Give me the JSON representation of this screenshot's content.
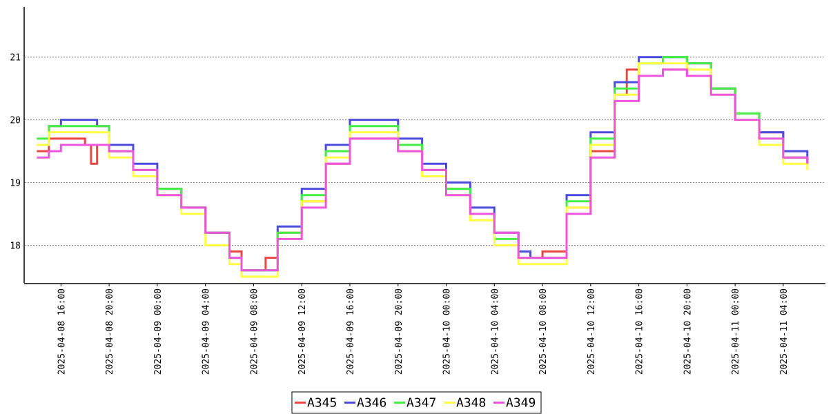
{
  "chart_data": {
    "type": "line",
    "title": "",
    "xlabel": "",
    "ylabel": "",
    "grid": {
      "y": true,
      "x": false,
      "style": "dotted"
    },
    "legend_position": "bottom-center",
    "ylim": [
      17.4,
      21.8
    ],
    "xlim": [
      "2025-04-08 13:00",
      "2025-04-11 07:30"
    ],
    "y_ticks": [
      18,
      19,
      20,
      21
    ],
    "x_ticks": [
      "2025-04-08 16:00",
      "2025-04-08 20:00",
      "2025-04-09 00:00",
      "2025-04-09 04:00",
      "2025-04-09 08:00",
      "2025-04-09 12:00",
      "2025-04-09 16:00",
      "2025-04-09 20:00",
      "2025-04-10 00:00",
      "2025-04-10 04:00",
      "2025-04-10 08:00",
      "2025-04-10 12:00",
      "2025-04-10 16:00",
      "2025-04-10 20:00",
      "2025-04-11 00:00",
      "2025-04-11 04:00"
    ],
    "series": [
      {
        "name": "A345",
        "color": "#ee4444",
        "x": [
          "2025-04-08 14:00",
          "2025-04-08 15:00",
          "2025-04-08 16:00",
          "2025-04-08 17:00",
          "2025-04-08 18:00",
          "2025-04-08 18:30",
          "2025-04-08 19:00",
          "2025-04-08 20:00",
          "2025-04-08 22:00",
          "2025-04-09 00:00",
          "2025-04-09 02:00",
          "2025-04-09 04:00",
          "2025-04-09 06:00",
          "2025-04-09 07:00",
          "2025-04-09 08:00",
          "2025-04-09 09:00",
          "2025-04-09 10:00",
          "2025-04-09 12:00",
          "2025-04-09 14:00",
          "2025-04-09 16:00",
          "2025-04-09 18:00",
          "2025-04-09 20:00",
          "2025-04-09 22:00",
          "2025-04-10 00:00",
          "2025-04-10 02:00",
          "2025-04-10 04:00",
          "2025-04-10 06:00",
          "2025-04-10 08:00",
          "2025-04-10 10:00",
          "2025-04-10 12:00",
          "2025-04-10 14:00",
          "2025-04-10 15:00",
          "2025-04-10 16:00",
          "2025-04-10 18:00",
          "2025-04-10 20:00",
          "2025-04-10 22:00",
          "2025-04-11 00:00",
          "2025-04-11 02:00",
          "2025-04-11 04:00",
          "2025-04-11 06:00"
        ],
        "y": [
          19.5,
          19.7,
          19.7,
          19.7,
          19.6,
          19.3,
          19.6,
          19.5,
          19.2,
          18.9,
          18.6,
          18.2,
          17.9,
          17.6,
          17.6,
          17.8,
          18.2,
          18.7,
          19.3,
          19.7,
          19.7,
          19.5,
          19.2,
          18.9,
          18.5,
          18.2,
          17.8,
          17.9,
          18.6,
          19.5,
          20.4,
          20.8,
          20.7,
          20.8,
          20.7,
          20.5,
          20.1,
          19.8,
          19.4,
          19.3
        ]
      },
      {
        "name": "A346",
        "color": "#4b4bdd",
        "x": [
          "2025-04-08 14:00",
          "2025-04-08 15:00",
          "2025-04-08 16:00",
          "2025-04-08 18:00",
          "2025-04-08 19:00",
          "2025-04-08 20:00",
          "2025-04-08 22:00",
          "2025-04-09 00:00",
          "2025-04-09 02:00",
          "2025-04-09 04:00",
          "2025-04-09 06:00",
          "2025-04-09 07:00",
          "2025-04-09 08:00",
          "2025-04-09 10:00",
          "2025-04-09 12:00",
          "2025-04-09 14:00",
          "2025-04-09 16:00",
          "2025-04-09 18:00",
          "2025-04-09 20:00",
          "2025-04-09 22:00",
          "2025-04-10 00:00",
          "2025-04-10 02:00",
          "2025-04-10 04:00",
          "2025-04-10 06:00",
          "2025-04-10 07:00",
          "2025-04-10 08:00",
          "2025-04-10 10:00",
          "2025-04-10 12:00",
          "2025-04-10 14:00",
          "2025-04-10 16:00",
          "2025-04-10 18:00",
          "2025-04-10 20:00",
          "2025-04-10 22:00",
          "2025-04-11 00:00",
          "2025-04-11 02:00",
          "2025-04-11 04:00",
          "2025-04-11 06:00"
        ],
        "y": [
          19.6,
          19.9,
          20.0,
          20.0,
          19.9,
          19.6,
          19.3,
          18.9,
          18.6,
          18.2,
          17.8,
          17.6,
          17.6,
          18.3,
          18.9,
          19.6,
          20.0,
          20.0,
          19.7,
          19.3,
          19.0,
          18.6,
          18.2,
          17.9,
          17.8,
          17.8,
          18.8,
          19.8,
          20.6,
          21.0,
          21.0,
          20.9,
          20.5,
          20.1,
          19.8,
          19.5,
          19.3
        ]
      },
      {
        "name": "A347",
        "color": "#44ee44",
        "x": [
          "2025-04-08 14:00",
          "2025-04-08 15:00",
          "2025-04-08 16:00",
          "2025-04-08 18:00",
          "2025-04-08 20:00",
          "2025-04-08 22:00",
          "2025-04-09 00:00",
          "2025-04-09 02:00",
          "2025-04-09 04:00",
          "2025-04-09 06:00",
          "2025-04-09 07:00",
          "2025-04-09 08:00",
          "2025-04-09 10:00",
          "2025-04-09 12:00",
          "2025-04-09 14:00",
          "2025-04-09 16:00",
          "2025-04-09 18:00",
          "2025-04-09 20:00",
          "2025-04-09 22:00",
          "2025-04-10 00:00",
          "2025-04-10 02:00",
          "2025-04-10 04:00",
          "2025-04-10 06:00",
          "2025-04-10 08:00",
          "2025-04-10 10:00",
          "2025-04-10 12:00",
          "2025-04-10 14:00",
          "2025-04-10 16:00",
          "2025-04-10 18:00",
          "2025-04-10 20:00",
          "2025-04-10 22:00",
          "2025-04-11 00:00",
          "2025-04-11 02:00",
          "2025-04-11 04:00",
          "2025-04-11 06:00"
        ],
        "y": [
          19.7,
          19.9,
          19.9,
          19.9,
          19.5,
          19.2,
          18.9,
          18.6,
          18.2,
          17.8,
          17.6,
          17.6,
          18.2,
          18.8,
          19.5,
          19.9,
          19.9,
          19.6,
          19.2,
          18.9,
          18.5,
          18.1,
          17.8,
          17.8,
          18.7,
          19.7,
          20.5,
          20.9,
          21.0,
          20.9,
          20.5,
          20.1,
          19.7,
          19.4,
          19.4
        ]
      },
      {
        "name": "A348",
        "color": "#ffff44",
        "x": [
          "2025-04-08 14:00",
          "2025-04-08 15:00",
          "2025-04-08 16:00",
          "2025-04-08 18:00",
          "2025-04-08 20:00",
          "2025-04-08 22:00",
          "2025-04-09 00:00",
          "2025-04-09 02:00",
          "2025-04-09 04:00",
          "2025-04-09 06:00",
          "2025-04-09 07:00",
          "2025-04-09 08:00",
          "2025-04-09 10:00",
          "2025-04-09 12:00",
          "2025-04-09 14:00",
          "2025-04-09 16:00",
          "2025-04-09 18:00",
          "2025-04-09 20:00",
          "2025-04-09 22:00",
          "2025-04-10 00:00",
          "2025-04-10 02:00",
          "2025-04-10 04:00",
          "2025-04-10 06:00",
          "2025-04-10 08:00",
          "2025-04-10 10:00",
          "2025-04-10 12:00",
          "2025-04-10 14:00",
          "2025-04-10 16:00",
          "2025-04-10 18:00",
          "2025-04-10 20:00",
          "2025-04-10 22:00",
          "2025-04-11 00:00",
          "2025-04-11 02:00",
          "2025-04-11 04:00",
          "2025-04-11 06:00"
        ],
        "y": [
          19.6,
          19.8,
          19.8,
          19.8,
          19.4,
          19.1,
          18.8,
          18.5,
          18.0,
          17.7,
          17.5,
          17.5,
          18.1,
          18.7,
          19.4,
          19.8,
          19.8,
          19.5,
          19.1,
          18.8,
          18.4,
          18.0,
          17.7,
          17.7,
          18.6,
          19.6,
          20.4,
          20.9,
          20.9,
          20.8,
          20.4,
          20.0,
          19.6,
          19.3,
          19.2
        ]
      },
      {
        "name": "A349",
        "color": "#ee55dd",
        "x": [
          "2025-04-08 14:00",
          "2025-04-08 15:00",
          "2025-04-08 16:00",
          "2025-04-08 18:00",
          "2025-04-08 20:00",
          "2025-04-08 22:00",
          "2025-04-09 00:00",
          "2025-04-09 02:00",
          "2025-04-09 04:00",
          "2025-04-09 06:00",
          "2025-04-09 07:00",
          "2025-04-09 08:00",
          "2025-04-09 10:00",
          "2025-04-09 12:00",
          "2025-04-09 14:00",
          "2025-04-09 16:00",
          "2025-04-09 18:00",
          "2025-04-09 20:00",
          "2025-04-09 22:00",
          "2025-04-10 00:00",
          "2025-04-10 02:00",
          "2025-04-10 04:00",
          "2025-04-10 06:00",
          "2025-04-10 08:00",
          "2025-04-10 10:00",
          "2025-04-10 12:00",
          "2025-04-10 14:00",
          "2025-04-10 16:00",
          "2025-04-10 18:00",
          "2025-04-10 20:00",
          "2025-04-10 22:00",
          "2025-04-11 00:00",
          "2025-04-11 02:00",
          "2025-04-11 04:00",
          "2025-04-11 06:00"
        ],
        "y": [
          19.4,
          19.5,
          19.6,
          19.6,
          19.5,
          19.2,
          18.8,
          18.6,
          18.2,
          17.8,
          17.6,
          17.6,
          18.1,
          18.6,
          19.3,
          19.7,
          19.7,
          19.5,
          19.2,
          18.8,
          18.5,
          18.2,
          17.8,
          17.8,
          18.5,
          19.4,
          20.3,
          20.7,
          20.8,
          20.7,
          20.4,
          20.0,
          19.7,
          19.4,
          19.3
        ]
      }
    ]
  }
}
